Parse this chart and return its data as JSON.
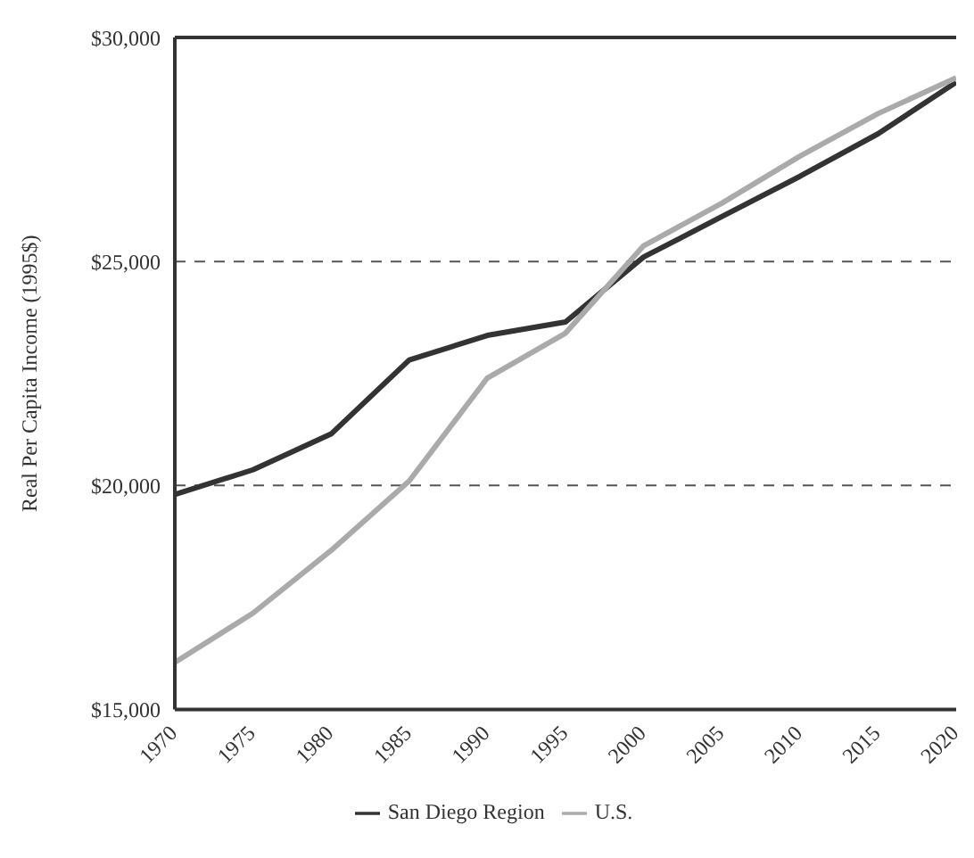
{
  "chart_data": {
    "type": "line",
    "ylabel": "Real Per Capita Income (1995$)",
    "x": [
      1970,
      1975,
      1980,
      1985,
      1990,
      1995,
      2000,
      2005,
      2010,
      2015,
      2020
    ],
    "series": [
      {
        "name": "San Diego Region",
        "color": "#333333",
        "values": [
          19800,
          20350,
          21150,
          22800,
          23350,
          23650,
          25100,
          26000,
          26900,
          27850,
          29000
        ]
      },
      {
        "name": "U.S.",
        "color": "#aaaaaa",
        "values": [
          16050,
          17150,
          18550,
          20100,
          22400,
          23400,
          25350,
          26300,
          27350,
          28300,
          29100
        ]
      }
    ],
    "xlim": [
      1970,
      2020
    ],
    "xticks": [
      1970,
      1975,
      1980,
      1985,
      1990,
      1995,
      2000,
      2005,
      2010,
      2015,
      2020
    ],
    "ylim": [
      15000,
      30000
    ],
    "yticks": [
      {
        "value": 15000,
        "label": "$15,000"
      },
      {
        "value": 20000,
        "label": "$20,000"
      },
      {
        "value": 25000,
        "label": "$25,000"
      },
      {
        "value": 30000,
        "label": "$30,000"
      }
    ],
    "grid": "y",
    "legend": "bottom",
    "marker": "none",
    "line_style": "solid"
  }
}
